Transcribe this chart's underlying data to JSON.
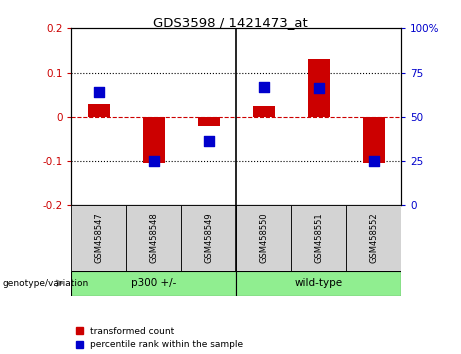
{
  "title": "GDS3598 / 1421473_at",
  "samples": [
    "GSM458547",
    "GSM458548",
    "GSM458549",
    "GSM458550",
    "GSM458551",
    "GSM458552"
  ],
  "red_bars": [
    0.03,
    -0.105,
    -0.02,
    0.025,
    0.13,
    -0.105
  ],
  "blue_dots": [
    0.055,
    -0.1,
    -0.055,
    0.068,
    0.065,
    -0.1
  ],
  "group_boundary": 2.5,
  "ylim_left": [
    -0.2,
    0.2
  ],
  "ylim_right": [
    0,
    100
  ],
  "yticks_left": [
    -0.2,
    -0.1,
    0.0,
    0.1,
    0.2
  ],
  "yticks_right": [
    0,
    25,
    50,
    75,
    100
  ],
  "left_tick_labels": [
    "-0.2",
    "-0.1",
    "0",
    "0.1",
    "0.2"
  ],
  "right_tick_labels": [
    "0",
    "25",
    "50",
    "75",
    "100%"
  ],
  "red_color": "#CC0000",
  "blue_color": "#0000CC",
  "bar_width": 0.4,
  "blue_dot_size": 55,
  "legend_items": [
    "transformed count",
    "percentile rank within the sample"
  ],
  "group_label_prefix": "genotype/variation",
  "header_bg": "#D3D3D3",
  "group_bg": "#90EE90",
  "group1_label": "p300 +/-",
  "group2_label": "wild-type"
}
